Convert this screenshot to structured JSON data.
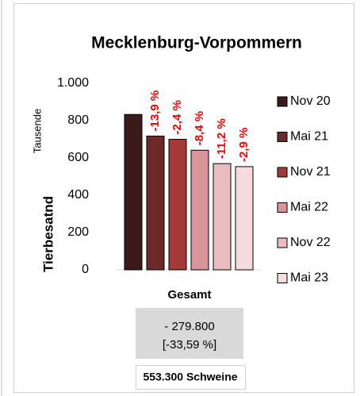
{
  "chart_data": {
    "type": "bar",
    "title": "Mecklenburg-Vorpommern",
    "unit_label": "Tausende",
    "y_label": "Tierbesatnd",
    "categories": [
      "Gesamt"
    ],
    "series": [
      {
        "name": "Nov 20",
        "color": "#3b1a1a",
        "values": [
          833.1
        ]
      },
      {
        "name": "Mai 21",
        "color": "#6e2a2a",
        "values": [
          717.3
        ],
        "annotation": "-13,9 %"
      },
      {
        "name": "Nov 21",
        "color": "#a33a3a",
        "values": [
          700.1
        ],
        "annotation": "-2,4 %"
      },
      {
        "name": "Mai 22",
        "color": "#d9959a",
        "values": [
          641.3
        ],
        "annotation": "-8,4 %"
      },
      {
        "name": "Nov 22",
        "color": "#e9bcbf",
        "values": [
          569.5
        ],
        "annotation": "-11,2 %"
      },
      {
        "name": "Mai 23",
        "color": "#f6dcdc",
        "values": [
          553.3
        ],
        "annotation": "-2,9 %"
      }
    ],
    "ylim": [
      0,
      1000
    ],
    "yticks": [
      0,
      200,
      400,
      600,
      800,
      {
        "value": 1000,
        "label": "1.000"
      }
    ],
    "legend": "right",
    "summary": {
      "change": "- 279.800",
      "percent": "[-33,59 %]"
    },
    "total": "553.300 Schweine"
  }
}
